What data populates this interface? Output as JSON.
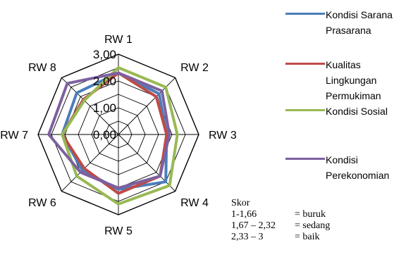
{
  "chart_data": {
    "type": "radar",
    "title": "",
    "categories": [
      "RW 1",
      "RW 2",
      "RW 3",
      "RW 4",
      "RW 5",
      "RW 6",
      "RW 7",
      "RW 8"
    ],
    "rlim": [
      0,
      3
    ],
    "ticks": [
      "0,00",
      "1,00",
      "2,00",
      "3,00"
    ],
    "tick_values": [
      0,
      1,
      2,
      3
    ],
    "grid_levels": [
      0.5,
      1,
      1.5,
      2,
      2.5,
      3
    ],
    "series": [
      {
        "name": "Kondisi Sarana Prasarana",
        "color": "#4a7ebb",
        "values": [
          2.3,
          2.15,
          1.8,
          2.5,
          2.05,
          1.9,
          2.1,
          2.2
        ]
      },
      {
        "name": "Kualitas Lingkungan Permukiman",
        "color": "#be4b48",
        "values": [
          2.3,
          2.0,
          1.8,
          2.2,
          2.2,
          1.8,
          2.1,
          1.85
        ]
      },
      {
        "name": "Kondisi Sosial",
        "color": "#98b954",
        "values": [
          2.5,
          2.5,
          2.2,
          2.7,
          2.6,
          2.2,
          2.1,
          1.8
        ]
      },
      {
        "name": "Kondisi Perekonomian",
        "color": "#7d60a0",
        "values": [
          2.3,
          2.3,
          1.9,
          2.2,
          2.0,
          2.0,
          2.6,
          2.7
        ]
      }
    ],
    "legend_position": "right",
    "grid": true
  },
  "legend": {
    "items": [
      {
        "lines": [
          "Kondisi Sarana",
          "Prasarana"
        ],
        "color": "#4a7ebb"
      },
      {
        "lines": [
          "Kualitas",
          "Lingkungan",
          "Permukiman"
        ],
        "color": "#be4b48"
      },
      {
        "lines": [
          "Kondisi Sosial"
        ],
        "color": "#98b954"
      },
      {
        "lines": [
          "Kondisi",
          "Perekonomian"
        ],
        "color": "#7d60a0"
      }
    ]
  },
  "score": {
    "title": "Skor",
    "rows": [
      {
        "range": "1-1,66",
        "category": "= buruk"
      },
      {
        "range": "1,67 – 2,32",
        "category": "= sedang"
      },
      {
        "range": "2,33 – 3",
        "category": "= baik"
      }
    ]
  }
}
